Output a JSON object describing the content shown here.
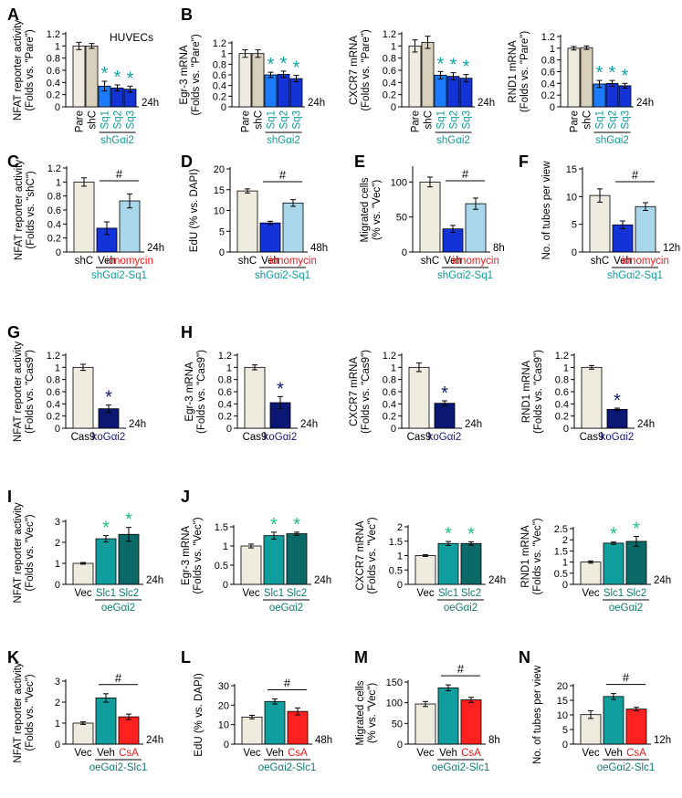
{
  "colors": {
    "beige": "#EEEBDF",
    "tan": "#D8D0BB",
    "blue": "#1C7BFF",
    "blue_dark": "#1233D8",
    "navy": "#0A1873",
    "light_blue": "#A9D6EB",
    "teal": "#119E9E",
    "teal_dark": "#0B6A68",
    "red": "#FF2020",
    "star_blue": "#10A3A3",
    "star_navy": "#0A1A6A",
    "star_green": "#1FBF7F",
    "label_teal": "#0E9A9A",
    "label_red": "#F01818",
    "label_navy": "#15167A",
    "label_green": "#117A6D"
  },
  "chart_data": [
    {
      "panel": "A",
      "type": "bar",
      "inset_title": "HUVECs",
      "ylabel": "NFAT reporter activity",
      "ylabel2": "(Folds vs. \"Pare\")",
      "categories": [
        "Pare",
        "shC",
        "Sq1",
        "Sq2",
        "Sq3"
      ],
      "values": [
        1.0,
        1.0,
        0.34,
        0.31,
        0.29
      ],
      "errors": [
        0.06,
        0.04,
        0.08,
        0.05,
        0.05
      ],
      "ylim": [
        0,
        1.2
      ],
      "yticks": [
        "0",
        "0.2",
        "0.4",
        "0.6",
        "0.8",
        "1",
        "1.2"
      ],
      "significance": [
        "",
        "",
        "*",
        "*",
        "*"
      ],
      "group_label": "shGαi2",
      "time": "24h"
    },
    {
      "panel": "B",
      "type": "bar",
      "ylabel": "Egr-3 mRNA",
      "ylabel2": "(Folds vs. \"Pare\")",
      "categories": [
        "Pare",
        "shC",
        "Sq1",
        "Sq2",
        "Sq3"
      ],
      "values": [
        1.0,
        1.0,
        0.6,
        0.61,
        0.53
      ],
      "errors": [
        0.07,
        0.07,
        0.05,
        0.06,
        0.06
      ],
      "ylim": [
        0,
        1.2
      ],
      "yticks": [
        "0",
        "0.2",
        "0.4",
        "0.6",
        "0.8",
        "1",
        "1.2"
      ],
      "significance": [
        "",
        "",
        "*",
        "*",
        "*"
      ],
      "group_label": "shGαi2",
      "time": "24h"
    },
    {
      "panel": "",
      "type": "bar",
      "ylabel": "CXCR7 mRNA",
      "ylabel2": "(Folds vs. \"Pare\")",
      "categories": [
        "Pare",
        "shC",
        "Sq1",
        "Sq2",
        "Sq3"
      ],
      "values": [
        1.0,
        1.06,
        0.52,
        0.5,
        0.47
      ],
      "errors": [
        0.1,
        0.1,
        0.06,
        0.06,
        0.06
      ],
      "ylim": [
        0,
        1.2
      ],
      "yticks": [
        "0",
        "0.2",
        "0.4",
        "0.6",
        "0.8",
        "1",
        "1.2"
      ],
      "significance": [
        "",
        "",
        "*",
        "*",
        "*"
      ],
      "group_label": "shGαi2",
      "time": "24h"
    },
    {
      "panel": "",
      "type": "bar",
      "ylabel": "RND1 mRNA",
      "ylabel2": "(Folds vs. \"Pare\")",
      "categories": [
        "Pare",
        "shC",
        "Sq1",
        "Sq2",
        "Sq3"
      ],
      "values": [
        1.0,
        1.01,
        0.39,
        0.4,
        0.36
      ],
      "errors": [
        0.03,
        0.03,
        0.06,
        0.05,
        0.04
      ],
      "ylim": [
        0,
        1.2
      ],
      "yticks": [
        "0",
        "0.2",
        "0.4",
        "0.6",
        "0.8",
        "1",
        "1.2"
      ],
      "significance": [
        "",
        "",
        "*",
        "*",
        "*"
      ],
      "group_label": "shGαi2",
      "time": "24h"
    },
    {
      "panel": "C",
      "type": "bar",
      "ylabel": "NFAT reporter activity",
      "ylabel2": "(Folds vs. \"shC\")",
      "categories": [
        "shC",
        "Veh",
        "ionomycin"
      ],
      "values": [
        1.0,
        0.34,
        0.73
      ],
      "errors": [
        0.06,
        0.09,
        0.1
      ],
      "ylim": [
        0,
        1.2
      ],
      "yticks": [
        "0",
        "0.2",
        "0.4",
        "0.6",
        "0.8",
        "1",
        "1.2"
      ],
      "bracket_label": "#",
      "group_label": "shGαi2-Sq1",
      "time": "24h"
    },
    {
      "panel": "D",
      "type": "bar",
      "ylabel": "EdU (% vs. DAPI)",
      "categories": [
        "shC",
        "Veh",
        "ionomycin"
      ],
      "values": [
        14.7,
        7.0,
        11.8
      ],
      "errors": [
        0.5,
        0.4,
        0.8
      ],
      "ylim": [
        0,
        20
      ],
      "yticks": [
        "0",
        "5",
        "10",
        "15",
        "20"
      ],
      "bracket_label": "#",
      "group_label": "shGαi2-Sq1",
      "time": "48h"
    },
    {
      "panel": "E",
      "type": "bar",
      "ylabel": "Migrated cells",
      "ylabel2": "(% vs. \"Vec\")",
      "categories": [
        "shC",
        "Veh",
        "ionomycin"
      ],
      "values": [
        100,
        33,
        69
      ],
      "errors": [
        7,
        5,
        8
      ],
      "ylim": [
        0,
        120
      ],
      "yticks": [
        "0",
        "50",
        "100"
      ],
      "bracket_label": "#",
      "group_label": "shGαi2-Sq1",
      "time": "8h"
    },
    {
      "panel": "F",
      "type": "bar",
      "ylabel": "No. of tubes per view",
      "categories": [
        "shC",
        "Veh",
        "ionomycin"
      ],
      "values": [
        10.2,
        4.9,
        8.2
      ],
      "errors": [
        1.2,
        0.7,
        0.7
      ],
      "ylim": [
        0,
        15
      ],
      "yticks": [
        "0",
        "5",
        "10",
        "15"
      ],
      "bracket_label": "#",
      "group_label": "shGαi2-Sq1",
      "time": "12h"
    },
    {
      "panel": "G",
      "type": "bar",
      "ylabel": "NFAT reporter activity",
      "ylabel2": "(Folds vs. \"Cas9\")",
      "categories": [
        "Cas9",
        "koGαi2"
      ],
      "values": [
        1.0,
        0.32
      ],
      "errors": [
        0.05,
        0.06
      ],
      "ylim": [
        0,
        1.2
      ],
      "yticks": [
        "0",
        "0.2",
        "0.4",
        "0.6",
        "0.8",
        "1",
        "1.2"
      ],
      "significance": [
        "",
        "*"
      ],
      "time": "24h"
    },
    {
      "panel": "H",
      "type": "bar",
      "ylabel": "Egr-3 mRNA",
      "ylabel2": "(Folds vs. \"Cas9\")",
      "categories": [
        "Cas9",
        "koGαi2"
      ],
      "values": [
        1.0,
        0.42
      ],
      "errors": [
        0.04,
        0.1
      ],
      "ylim": [
        0,
        1.2
      ],
      "yticks": [
        "0",
        "0.2",
        "0.4",
        "0.6",
        "0.8",
        "1",
        "1.2"
      ],
      "significance": [
        "",
        "*"
      ],
      "time": "24h"
    },
    {
      "panel": "",
      "type": "bar",
      "ylabel": "CXCR7 mRNA",
      "ylabel2": "(Folds vs. \"Cas9\")",
      "categories": [
        "Cas9",
        "koGαi2"
      ],
      "values": [
        1.0,
        0.41
      ],
      "errors": [
        0.07,
        0.04
      ],
      "ylim": [
        0,
        1.2
      ],
      "yticks": [
        "0",
        "0.2",
        "0.4",
        "0.6",
        "0.8",
        "1",
        "1.2"
      ],
      "significance": [
        "",
        "*"
      ],
      "time": "24h"
    },
    {
      "panel": "",
      "type": "bar",
      "ylabel": "RND1 mRNA",
      "ylabel2": "(Folds vs. \"Cas9\")",
      "categories": [
        "Cas9",
        "koGαi2"
      ],
      "values": [
        1.0,
        0.31
      ],
      "errors": [
        0.03,
        0.02
      ],
      "ylim": [
        0,
        1.2
      ],
      "yticks": [
        "0",
        "0.2",
        "0.4",
        "0.6",
        "0.8",
        "1",
        "1.2"
      ],
      "significance": [
        "",
        "*"
      ],
      "time": "24h"
    },
    {
      "panel": "I",
      "type": "bar",
      "ylabel": "NFAT reporter activity",
      "ylabel2": "(Folds vs. \"Vec\")",
      "categories": [
        "Vec",
        "Slc1",
        "Slc2"
      ],
      "values": [
        1.0,
        2.17,
        2.38
      ],
      "errors": [
        0.04,
        0.15,
        0.33
      ],
      "ylim": [
        0,
        3
      ],
      "yticks": [
        "0",
        "1",
        "2",
        "3"
      ],
      "significance": [
        "",
        "*",
        "*"
      ],
      "group_label": "oeGαi2",
      "time": "24h"
    },
    {
      "panel": "J",
      "type": "bar",
      "ylabel": "Egr-3 mRNA",
      "ylabel2": "(Folds vs. \"Vec\")",
      "categories": [
        "Vec",
        "Slc1",
        "Slc2"
      ],
      "values": [
        1.0,
        1.27,
        1.32
      ],
      "errors": [
        0.05,
        0.09,
        0.04
      ],
      "ylim": [
        0,
        1.5
      ],
      "yticks": [
        "0",
        "0.5",
        "1",
        "1.5"
      ],
      "significance": [
        "",
        "*",
        "*"
      ],
      "group_label": "oeGαi2",
      "time": "24h"
    },
    {
      "panel": "",
      "type": "bar",
      "ylabel": "CXCR7 mRNA",
      "ylabel2": "(Folds vs. \"Vec\")",
      "categories": [
        "Vec",
        "Slc1",
        "Slc2"
      ],
      "values": [
        1.0,
        1.42,
        1.42
      ],
      "errors": [
        0.03,
        0.07,
        0.06
      ],
      "ylim": [
        0,
        2
      ],
      "yticks": [
        "0",
        "0.5",
        "1",
        "1.5",
        "2"
      ],
      "significance": [
        "",
        "*",
        "*"
      ],
      "group_label": "oeGαi2",
      "time": "24h"
    },
    {
      "panel": "",
      "type": "bar",
      "ylabel": "RND1 mRNA",
      "ylabel2": "(Folds vs. \"Vec\")",
      "categories": [
        "Vec",
        "Slc1",
        "Slc2"
      ],
      "values": [
        1.0,
        1.85,
        1.93
      ],
      "errors": [
        0.05,
        0.05,
        0.22
      ],
      "ylim": [
        0,
        2.5
      ],
      "yticks": [
        "0",
        "0.5",
        "1",
        "1.5",
        "2",
        "2.5"
      ],
      "significance": [
        "",
        "*",
        "*"
      ],
      "group_label": "oeGαi2",
      "time": "24h"
    },
    {
      "panel": "K",
      "type": "bar",
      "ylabel": "NFAT reporter activity",
      "ylabel2": "(Folds vs. \"Vec\")",
      "categories": [
        "Vec",
        "Veh",
        "CsA"
      ],
      "values": [
        1.0,
        2.2,
        1.3
      ],
      "errors": [
        0.06,
        0.2,
        0.13
      ],
      "ylim": [
        0,
        3
      ],
      "yticks": [
        "0",
        "1",
        "2",
        "3"
      ],
      "bracket_label": "#",
      "group_label": "oeGαi2-Slc1",
      "time": "24h"
    },
    {
      "panel": "L",
      "type": "bar",
      "ylabel": "EdU (% vs. DAPI)",
      "categories": [
        "Vec",
        "Veh",
        "CsA"
      ],
      "values": [
        13.9,
        21.9,
        16.8
      ],
      "errors": [
        0.9,
        1.3,
        1.8
      ],
      "ylim": [
        0,
        30
      ],
      "yticks": [
        "0",
        "10",
        "20",
        "30"
      ],
      "bracket_label": "#",
      "group_label": "oeGαi2-Slc1",
      "time": "48h"
    },
    {
      "panel": "M",
      "type": "bar",
      "ylabel": "Migrated cells",
      "ylabel2": "(% vs. \"Vec\")",
      "categories": [
        "Vec",
        "Veh",
        "CsA"
      ],
      "values": [
        97,
        136,
        107
      ],
      "errors": [
        6,
        7,
        6
      ],
      "ylim": [
        0,
        150
      ],
      "yticks": [
        "0",
        "50",
        "100",
        "150"
      ],
      "bracket_label": "#",
      "group_label": "oeGαi2-Slc1",
      "time": "8h"
    },
    {
      "panel": "N",
      "type": "bar",
      "ylabel": "No. of tubes per view",
      "categories": [
        "Vec",
        "Veh",
        "CsA"
      ],
      "values": [
        10.1,
        16.3,
        12.0
      ],
      "errors": [
        1.3,
        1.0,
        0.6
      ],
      "ylim": [
        0,
        20
      ],
      "yticks": [
        "0",
        "5",
        "10",
        "15",
        "20"
      ],
      "bracket_label": "#",
      "group_label": "oeGαi2-Slc1",
      "time": "12h"
    }
  ]
}
